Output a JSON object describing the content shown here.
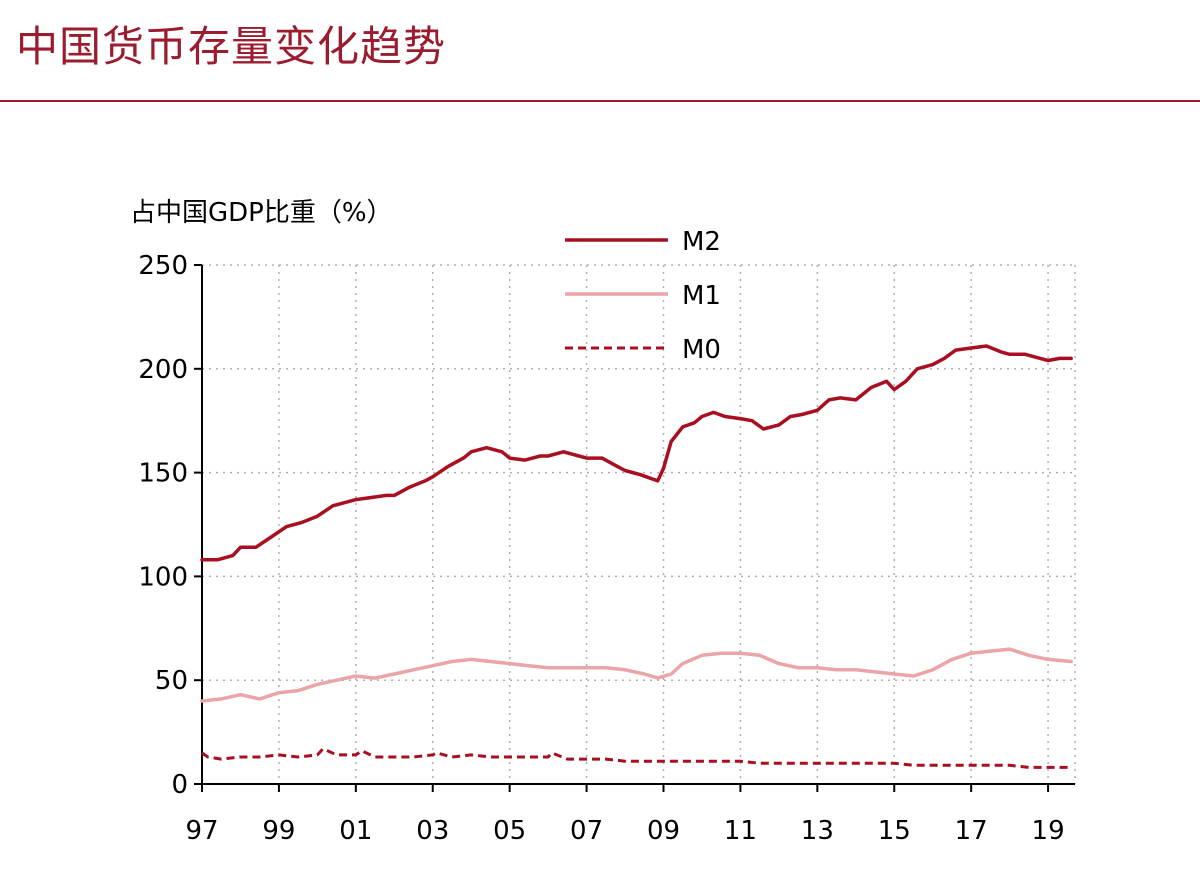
{
  "header": {
    "title": "中国货币存量变化趋势"
  },
  "colors": {
    "brand": "#9b1c2e",
    "m2": "#a80f20",
    "m1": "#eba4a8",
    "m0": "#a80f20",
    "grid": "#b0b0b0"
  },
  "chart_data": {
    "type": "line",
    "title": "",
    "xlabel": "",
    "ylabel": "占中国GDP比重（%）",
    "xlim": [
      1997,
      2019.7
    ],
    "ylim": [
      0,
      250
    ],
    "yticks": [
      0,
      50,
      100,
      150,
      200,
      250
    ],
    "xticks": [
      {
        "value": 1997,
        "label": "97"
      },
      {
        "value": 1999,
        "label": "99"
      },
      {
        "value": 2001,
        "label": "01"
      },
      {
        "value": 2003,
        "label": "03"
      },
      {
        "value": 2005,
        "label": "05"
      },
      {
        "value": 2007,
        "label": "07"
      },
      {
        "value": 2009,
        "label": "09"
      },
      {
        "value": 2011,
        "label": "11"
      },
      {
        "value": 2013,
        "label": "13"
      },
      {
        "value": 2015,
        "label": "15"
      },
      {
        "value": 2017,
        "label": "17"
      },
      {
        "value": 2019,
        "label": "19"
      }
    ],
    "grid": true,
    "legend_position": "top-center",
    "series": [
      {
        "name": "M2",
        "style": "solid",
        "x": [
          1997.0,
          1997.4,
          1997.8,
          1998.0,
          1998.4,
          1998.8,
          1999.2,
          1999.6,
          2000.0,
          2000.4,
          2000.8,
          2001.0,
          2001.4,
          2001.8,
          2002.0,
          2002.4,
          2002.8,
          2003.0,
          2003.4,
          2003.8,
          2004.0,
          2004.4,
          2004.8,
          2005.0,
          2005.4,
          2005.8,
          2006.0,
          2006.4,
          2006.8,
          2007.0,
          2007.4,
          2007.8,
          2008.0,
          2008.4,
          2008.85,
          2009.0,
          2009.2,
          2009.5,
          2009.8,
          2010.0,
          2010.3,
          2010.6,
          2011.0,
          2011.3,
          2011.6,
          2012.0,
          2012.3,
          2012.6,
          2013.0,
          2013.3,
          2013.6,
          2014.0,
          2014.4,
          2014.8,
          2015.0,
          2015.3,
          2015.6,
          2016.0,
          2016.3,
          2016.6,
          2017.0,
          2017.4,
          2017.8,
          2018.0,
          2018.4,
          2018.8,
          2019.0,
          2019.3,
          2019.6
        ],
        "values": [
          108,
          108,
          110,
          114,
          114,
          119,
          124,
          126,
          129,
          134,
          136,
          137,
          138,
          139,
          139,
          143,
          146,
          148,
          153,
          157,
          160,
          162,
          160,
          157,
          156,
          158,
          158,
          160,
          158,
          157,
          157,
          153,
          151,
          149,
          146,
          152,
          165,
          172,
          174,
          177,
          179,
          177,
          176,
          175,
          171,
          173,
          177,
          178,
          180,
          185,
          186,
          185,
          191,
          194,
          190,
          194,
          200,
          202,
          205,
          209,
          210,
          211,
          208,
          207,
          207,
          205,
          204,
          205,
          205
        ]
      },
      {
        "name": "M1",
        "style": "solid",
        "x": [
          1997.0,
          1997.5,
          1998.0,
          1998.5,
          1999.0,
          1999.5,
          2000.0,
          2000.5,
          2001.0,
          2001.5,
          2002.0,
          2002.5,
          2003.0,
          2003.5,
          2004.0,
          2004.5,
          2005.0,
          2005.5,
          2006.0,
          2006.5,
          2007.0,
          2007.5,
          2008.0,
          2008.5,
          2008.85,
          2009.2,
          2009.5,
          2010.0,
          2010.5,
          2011.0,
          2011.5,
          2012.0,
          2012.5,
          2013.0,
          2013.5,
          2014.0,
          2014.5,
          2015.0,
          2015.5,
          2016.0,
          2016.5,
          2017.0,
          2017.5,
          2018.0,
          2018.5,
          2019.0,
          2019.6
        ],
        "values": [
          40,
          41,
          43,
          41,
          44,
          45,
          48,
          50,
          52,
          51,
          53,
          55,
          57,
          59,
          60,
          59,
          58,
          57,
          56,
          56,
          56,
          56,
          55,
          53,
          51,
          53,
          58,
          62,
          63,
          63,
          62,
          58,
          56,
          56,
          55,
          55,
          54,
          53,
          52,
          55,
          60,
          63,
          64,
          65,
          62,
          60,
          59
        ]
      },
      {
        "name": "M0",
        "style": "dashed",
        "x": [
          1997.0,
          1997.15,
          1997.5,
          1998.0,
          1998.5,
          1999.0,
          1999.5,
          2000.0,
          2000.15,
          2000.5,
          2001.0,
          2001.15,
          2001.5,
          2002.0,
          2002.5,
          2003.0,
          2003.1,
          2003.5,
          2004.0,
          2004.5,
          2005.0,
          2005.5,
          2006.0,
          2006.1,
          2006.5,
          2007.0,
          2007.5,
          2008.0,
          2008.5,
          2009.0,
          2009.5,
          2010.0,
          2010.5,
          2011.0,
          2011.5,
          2012.0,
          2012.5,
          2013.0,
          2013.5,
          2014.0,
          2014.5,
          2015.0,
          2015.5,
          2016.0,
          2016.5,
          2017.0,
          2017.5,
          2018.0,
          2018.5,
          2019.0,
          2019.6
        ],
        "values": [
          15,
          13,
          12,
          13,
          13,
          14,
          13,
          14,
          17,
          14,
          14,
          16,
          13,
          13,
          13,
          14,
          15,
          13,
          14,
          13,
          13,
          13,
          13,
          15,
          12,
          12,
          12,
          11,
          11,
          11,
          11,
          11,
          11,
          11,
          10,
          10,
          10,
          10,
          10,
          10,
          10,
          10,
          9,
          9,
          9,
          9,
          9,
          9,
          8,
          8,
          8
        ]
      }
    ]
  }
}
